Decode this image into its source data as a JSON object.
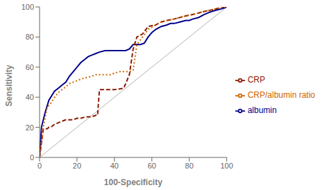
{
  "chart_data": {
    "type": "line",
    "xlabel": "100-Specificity",
    "ylabel": "Sensitivity",
    "xlim": [
      0,
      100
    ],
    "ylim": [
      0,
      100
    ],
    "xticks": [
      0,
      20,
      40,
      60,
      80,
      100
    ],
    "yticks": [
      0,
      20,
      40,
      60,
      80,
      100
    ],
    "grid": false,
    "legend": "right",
    "reference": {
      "x": [
        0,
        100
      ],
      "values": [
        0,
        100
      ],
      "color": "#b0b0b0",
      "line_style": "solid"
    },
    "series": [
      {
        "name": "albumin",
        "color": "#00008B",
        "line_style": "solid",
        "x": [
          0,
          1,
          3,
          5,
          8,
          10,
          12,
          14,
          16,
          18,
          20,
          22,
          24,
          26,
          28,
          30,
          32,
          35,
          38,
          40,
          42,
          44,
          46,
          48,
          50,
          52,
          54,
          56,
          58,
          60,
          62,
          65,
          68,
          70,
          72,
          75,
          78,
          80,
          82,
          85,
          88,
          90,
          92,
          95,
          98,
          100
        ],
        "values": [
          0,
          20,
          30,
          38,
          44,
          46,
          48,
          50,
          54,
          57,
          60,
          63,
          65,
          67,
          68,
          69,
          70,
          71,
          71,
          71,
          71,
          71,
          71,
          72,
          75,
          75,
          75,
          76,
          80,
          83,
          85,
          87,
          88,
          89,
          89,
          90,
          91,
          91,
          92,
          93,
          95,
          96,
          97,
          98,
          99,
          100
        ]
      },
      {
        "name": "CRP",
        "color": "#8B1A00",
        "line_style": "dashed",
        "x": [
          0,
          2,
          4,
          5,
          6,
          8,
          10,
          12,
          14,
          18,
          20,
          22,
          25,
          28,
          30,
          31,
          32,
          35,
          40,
          45,
          48,
          50,
          52,
          55,
          58,
          62,
          65,
          68,
          72,
          75,
          78,
          82,
          85,
          88,
          92,
          95,
          98,
          100
        ],
        "values": [
          0,
          19,
          19,
          20,
          20,
          22,
          23,
          24,
          25,
          25,
          26,
          26,
          27,
          27,
          28,
          28,
          45,
          45,
          45,
          46,
          55,
          72,
          80,
          82,
          87,
          88,
          90,
          91,
          92,
          93,
          94,
          95,
          96,
          97,
          98,
          99,
          100,
          100
        ]
      },
      {
        "name": "CRP/albumin ratio",
        "color": "#CC6600",
        "line_style": "dotted",
        "x": [
          0,
          2,
          4,
          6,
          8,
          10,
          12,
          14,
          16,
          18,
          20,
          22,
          25,
          28,
          30,
          33,
          35,
          38,
          40,
          43,
          45,
          48,
          50,
          52,
          55,
          58,
          62,
          65,
          68,
          72,
          75,
          78,
          82,
          85,
          88,
          92,
          95,
          98,
          100
        ],
        "values": [
          0,
          20,
          33,
          36,
          40,
          43,
          45,
          47,
          49,
          50,
          51,
          52,
          53,
          54,
          55,
          55,
          55,
          55,
          56,
          57,
          57,
          57,
          58,
          75,
          80,
          85,
          88,
          90,
          91,
          92,
          93,
          94,
          95,
          96,
          97,
          98,
          99,
          100,
          100
        ]
      }
    ]
  }
}
